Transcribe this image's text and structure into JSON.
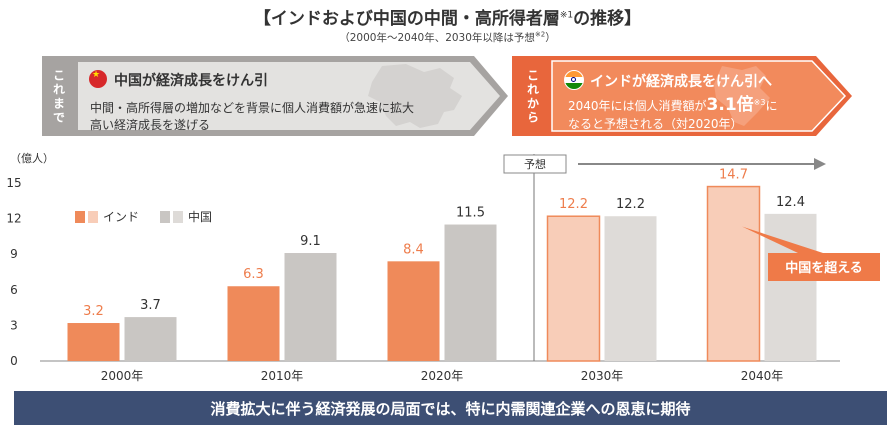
{
  "header": {
    "title": "【インドおよび中国の中間・高所得者層",
    "title_note": "※1",
    "title_end": "の推移】",
    "subtitle": "（2000年〜2040年、2030年以降は予想",
    "subtitle_note": "※2",
    "subtitle_end": "）"
  },
  "banner_past": {
    "tag": "これまで",
    "heading": "中国が経済成長をけん引",
    "body_line1": "中間・高所得層の増加などを背景に個人消費額が急速に拡大",
    "body_line2": "高い経済成長を遂げる"
  },
  "banner_future": {
    "tag": "これから",
    "heading": "インドが経済成長をけん引へ",
    "body_pre": "2040年には個人消費額が",
    "body_big": "3.1倍",
    "body_note": "※3",
    "body_post": "に",
    "body_line2": "なると予想される（対2020年）"
  },
  "chart_data": {
    "type": "bar",
    "ylabel": "（億人）",
    "ylim": [
      0,
      15
    ],
    "yticks": [
      0,
      3,
      6,
      9,
      12,
      15
    ],
    "categories": [
      "2000年",
      "2010年",
      "2020年",
      "2030年",
      "2040年"
    ],
    "series": [
      {
        "name": "インド",
        "values": [
          3.2,
          6.3,
          8.4,
          12.2,
          14.7
        ],
        "labels": [
          "3.2",
          "6.3",
          "8.4",
          "12.2",
          "14.7"
        ]
      },
      {
        "name": "中国",
        "values": [
          3.7,
          9.1,
          11.5,
          12.2,
          12.4
        ],
        "labels": [
          "3.7",
          "9.1",
          "11.5",
          "12.2",
          "12.4"
        ]
      }
    ],
    "forecast_label": "予想",
    "forecast_from": "2030年",
    "callout": "中国を超える",
    "colors": {
      "india": "#ef8a5a",
      "india_forecast": "#f8cdb8",
      "china": "#c9c6c3",
      "china_forecast": "#dedbd8",
      "india_label": "#ee7d4c",
      "forecast_border": "#ef8a5a",
      "axis": "#888888"
    }
  },
  "footer": {
    "message": "消費拡大に伴う経済発展の局面では、特に内需関連企業への恩恵に期待"
  }
}
